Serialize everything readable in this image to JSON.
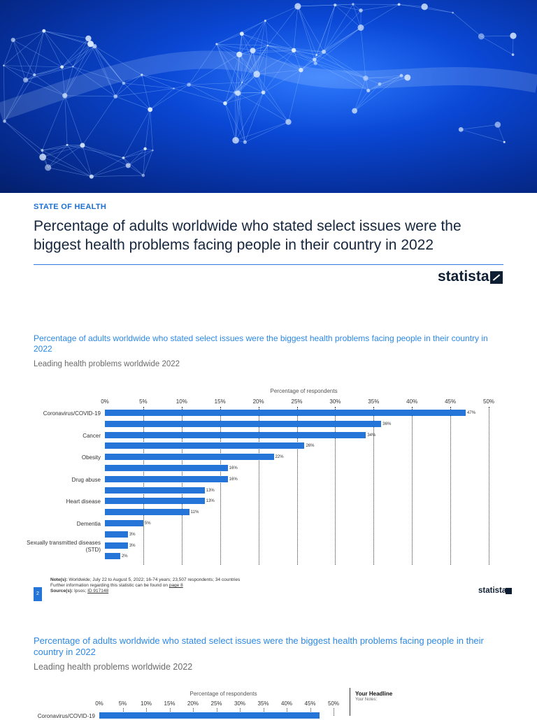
{
  "header": {
    "kicker": "STATE OF HEALTH",
    "title": "Percentage of adults worldwide who stated select issues were the biggest health problems facing people in their country in 2022",
    "logo_text": "statista"
  },
  "section1": {
    "title": "Percentage of adults worldwide who stated select issues were the biggest health problems facing people in their country in 2022",
    "subtitle": "Leading health problems worldwide 2022",
    "page_number": "2"
  },
  "notes": {
    "note_label": "Note(s):",
    "note_text": "Worldwide; July 22 to August 5, 2022; 16-74 years; 23,507 respondents; 34 countries",
    "further": "Further information regarding this statistic can be found on",
    "further_link": "page 8",
    "source_label": "Source(s):",
    "source_text": "Ipsos;",
    "source_id": "ID 917148"
  },
  "section2": {
    "title": "Percentage of adults worldwide who stated select issues were the biggest health problems facing people in their country in 2022",
    "subtitle": "Leading health problems worldwide 2022",
    "side_headline": "Your Headline",
    "side_notes": "Your Notes:",
    "first_category": "Coronavirus/COVID-19",
    "first_value": "47%"
  },
  "chart_data": [
    {
      "type": "bar",
      "orientation": "horizontal",
      "xlabel": "Percentage of respondents",
      "xlim": [
        0,
        50
      ],
      "x_ticks": [
        "0%",
        "5%",
        "10%",
        "15%",
        "20%",
        "25%",
        "30%",
        "35%",
        "40%",
        "45%",
        "50%"
      ],
      "categories": [
        "Coronavirus/COVID-19",
        "",
        "Cancer",
        "",
        "Obesity",
        "",
        "Drug abuse",
        "",
        "Heart disease",
        "",
        "Dementia",
        "",
        "Sexually transmitted diseases (STD)",
        ""
      ],
      "values": [
        47,
        36,
        34,
        26,
        22,
        16,
        16,
        13,
        13,
        11,
        5,
        3,
        3,
        2
      ],
      "value_labels": [
        "47%",
        "36%",
        "34%",
        "26%",
        "22%",
        "16%",
        "16%",
        "13%",
        "13%",
        "11%",
        "5%",
        "3%",
        "3%",
        "2%"
      ],
      "grid": true
    },
    {
      "type": "bar",
      "orientation": "horizontal",
      "xlabel": "Percentage of respondents",
      "xlim": [
        0,
        50
      ],
      "x_ticks": [
        "0%",
        "5%",
        "10%",
        "15%",
        "20%",
        "25%",
        "30%",
        "35%",
        "40%",
        "45%",
        "50%"
      ],
      "categories": [
        "Coronavirus/COVID-19"
      ],
      "values": [
        47
      ]
    }
  ],
  "colors": {
    "accent": "#2575d9",
    "title_blue": "#2b88e6",
    "hero_blue": "#0a48d6"
  }
}
